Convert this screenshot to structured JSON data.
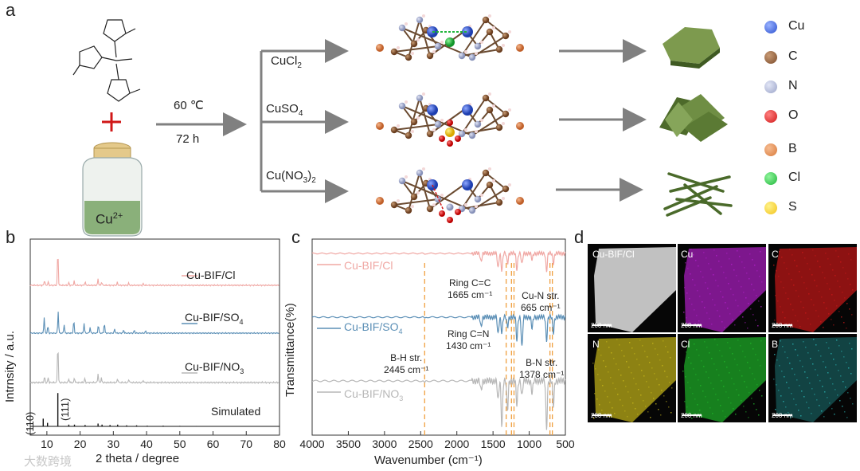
{
  "panels": {
    "a": "a",
    "b": "b",
    "c": "c",
    "d": "d"
  },
  "synthesis": {
    "metal": "Cu",
    "metal_charge": "2+",
    "temperature": "60 ℃",
    "time": "72 h",
    "branches": [
      {
        "salt_base": "CuCl",
        "salt_sub": "2",
        "salt_suffix": ""
      },
      {
        "salt_base": "CuSO",
        "salt_sub": "4",
        "salt_suffix": ""
      },
      {
        "salt_base": "Cu(NO",
        "salt_sub": "3",
        "salt_suffix": ")",
        "salt_sub2": "2"
      }
    ]
  },
  "element_legend": [
    {
      "symbol": "Cu",
      "color": "#2a4fcf"
    },
    {
      "symbol": "C",
      "color": "#7a4a2a"
    },
    {
      "symbol": "N",
      "color": "#9aa3c8"
    },
    {
      "symbol": "O",
      "color": "#d01818"
    },
    {
      "symbol": "B",
      "color": "#d87a3a"
    },
    {
      "symbol": "Cl",
      "color": "#1fb53a"
    },
    {
      "symbol": "S",
      "color": "#f2c21a"
    }
  ],
  "chart_data": [
    {
      "type": "line",
      "panel": "b",
      "title": "",
      "xlabel": "2 theta / degree",
      "ylabel": "Intrnsity / a.u.",
      "xlim": [
        5,
        80
      ],
      "xticks": [
        10,
        20,
        30,
        40,
        50,
        60,
        70,
        80
      ],
      "series": [
        {
          "name": "Cu-BIF/Cl",
          "color": "#f0a8a4",
          "peaks": [
            [
              9.3,
              0.15
            ],
            [
              10.4,
              0.1
            ],
            [
              13.3,
              1.0
            ],
            [
              16.6,
              0.08
            ],
            [
              18.2,
              0.12
            ],
            [
              21.5,
              0.1
            ],
            [
              25.4,
              0.18
            ],
            [
              26.5,
              0.1
            ],
            [
              31.2,
              0.08
            ],
            [
              34.6,
              0.06
            ],
            [
              39.0,
              0.05
            ]
          ]
        },
        {
          "name": "Cu-BIF/SO4",
          "color": "#5b8fb6",
          "peaks": [
            [
              9.2,
              0.55
            ],
            [
              10.3,
              0.25
            ],
            [
              13.4,
              0.75
            ],
            [
              15.2,
              0.3
            ],
            [
              18.1,
              0.45
            ],
            [
              21.2,
              0.35
            ],
            [
              23.0,
              0.2
            ],
            [
              25.5,
              0.3
            ],
            [
              27.3,
              0.35
            ],
            [
              30.4,
              0.15
            ],
            [
              33.1,
              0.12
            ],
            [
              36.3,
              0.1
            ],
            [
              39.7,
              0.08
            ]
          ]
        },
        {
          "name": "Cu-BIF/NO3",
          "color": "#b7b7b7",
          "peaks": [
            [
              9.3,
              0.15
            ],
            [
              10.4,
              0.12
            ],
            [
              13.3,
              1.0
            ],
            [
              16.6,
              0.1
            ],
            [
              18.3,
              0.12
            ],
            [
              21.4,
              0.1
            ],
            [
              25.4,
              0.22
            ],
            [
              26.4,
              0.12
            ],
            [
              31.3,
              0.1
            ],
            [
              34.7,
              0.08
            ],
            [
              39.0,
              0.06
            ]
          ]
        },
        {
          "name": "Simulated",
          "color": "#111111",
          "sticks": [
            [
              8.9,
              0.22
            ],
            [
              10.2,
              0.1
            ],
            [
              13.3,
              0.95
            ],
            [
              16.6,
              0.05
            ],
            [
              18.3,
              0.05
            ],
            [
              21.5,
              0.04
            ],
            [
              25.4,
              0.08
            ],
            [
              26.6,
              0.05
            ],
            [
              29.0,
              0.04
            ],
            [
              31.3,
              0.05
            ],
            [
              34.0,
              0.03
            ],
            [
              37.0,
              0.03
            ],
            [
              40.2,
              0.02
            ],
            [
              45.0,
              0.02
            ],
            [
              50.0,
              0.015
            ],
            [
              55.0,
              0.012
            ],
            [
              60.0,
              0.01
            ],
            [
              65.0,
              0.008
            ],
            [
              70.0,
              0.008
            ],
            [
              75.0,
              0.006
            ]
          ]
        }
      ],
      "annotations": [
        {
          "text": "(110)",
          "x": 8.9
        },
        {
          "text": "(111)",
          "x": 13.3
        }
      ]
    },
    {
      "type": "line",
      "panel": "c",
      "title": "",
      "xlabel": "Wavenumber (cm⁻¹)",
      "ylabel": "Transmittance(%)",
      "xlim": [
        4000,
        500
      ],
      "xticks": [
        4000,
        3500,
        3000,
        2500,
        2000,
        1500,
        1000,
        500
      ],
      "series": [
        {
          "name": "Cu-BIF/Cl",
          "color": "#f0a8a4"
        },
        {
          "name": "Cu-BIF/SO4",
          "color": "#5b8fb6"
        },
        {
          "name": "Cu-BIF/NO3",
          "color": "#b7b7b7"
        }
      ],
      "bands": [
        {
          "text": "B-H str.",
          "value": "2445 cm⁻¹",
          "x": 2445
        },
        {
          "text": "Ring C=C",
          "value": "1665 cm⁻¹",
          "x": 1318
        },
        {
          "text": "Ring C=N",
          "value": "1430 cm⁻¹",
          "x": 1245
        },
        {
          "text": "B-N str.",
          "value": "1378 cm⁻¹",
          "x": 1210
        },
        {
          "text": "Cu-N str.",
          "value": "665 cm⁻¹",
          "x": 680
        }
      ],
      "band_lines_x": [
        2445,
        1318,
        1245,
        1210,
        713,
        680
      ]
    }
  ],
  "eds": {
    "tiles": [
      {
        "label": "Cu-BIF/Cl",
        "scale": "200 nm",
        "color": "#d8d8d8"
      },
      {
        "label": "Cu",
        "scale": "200 nm",
        "color": "#b020c8"
      },
      {
        "label": "C",
        "scale": "200 nm",
        "color": "#c81818"
      },
      {
        "label": "N",
        "scale": "200 nm",
        "color": "#c8b81a"
      },
      {
        "label": "Cl",
        "scale": "200 nm",
        "color": "#1fb52a"
      },
      {
        "label": "B",
        "scale": "200 nm",
        "color": "#2ab8b8"
      }
    ]
  },
  "watermark": "大数跨境"
}
